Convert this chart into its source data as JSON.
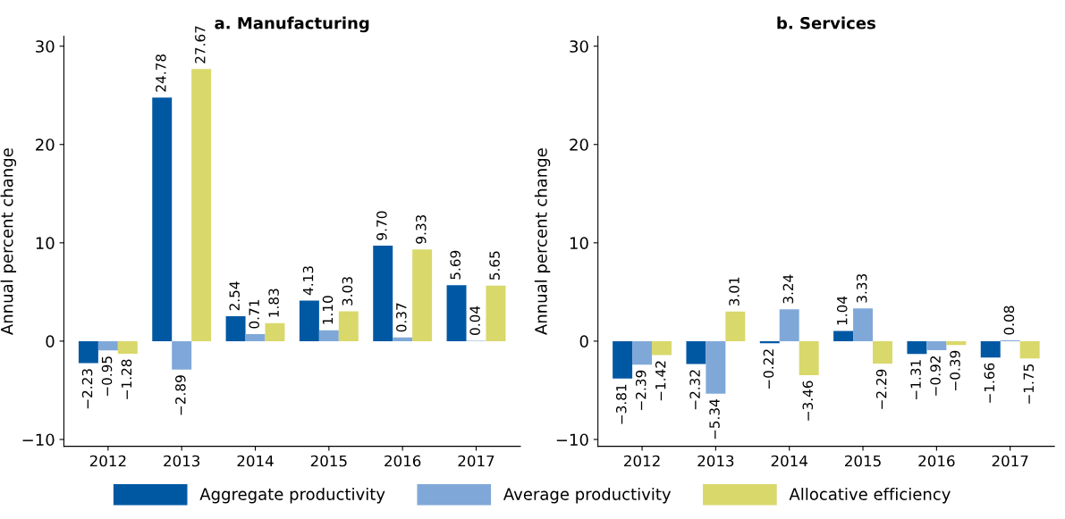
{
  "chart_data": [
    {
      "type": "bar",
      "title": "a. Manufacturing",
      "ylabel": "Annual percent change",
      "categories": [
        "2012",
        "2013",
        "2014",
        "2015",
        "2016",
        "2017"
      ],
      "series": [
        {
          "name": "Aggregate productivity",
          "color": "#0058a3",
          "values": [
            -2.23,
            24.78,
            2.54,
            4.13,
            9.7,
            5.69
          ],
          "value_labels": [
            "−2.23",
            "24.78",
            "2.54",
            "4.13",
            "9.70",
            "5.69"
          ]
        },
        {
          "name": "Average productivity",
          "color": "#7fa8d8",
          "values": [
            -0.95,
            -2.89,
            0.71,
            1.1,
            0.37,
            0.04
          ],
          "value_labels": [
            "−0.95",
            "−2.89",
            "0.71",
            "1.10",
            "0.37",
            "0.04"
          ]
        },
        {
          "name": "Allocative efficiency",
          "color": "#d9d86a",
          "values": [
            -1.28,
            27.67,
            1.83,
            3.03,
            9.33,
            5.65
          ],
          "value_labels": [
            "−1.28",
            "27.67",
            "1.83",
            "3.03",
            "9.33",
            "5.65"
          ]
        }
      ],
      "ylim": [
        -10.7,
        31
      ],
      "yticks": [
        -10,
        0,
        10,
        20,
        30
      ],
      "grid": false,
      "legend": "bottom"
    },
    {
      "type": "bar",
      "title": "b. Services",
      "ylabel": "Annual percent change",
      "categories": [
        "2012",
        "2013",
        "2014",
        "2015",
        "2016",
        "2017"
      ],
      "series": [
        {
          "name": "Aggregate productivity",
          "color": "#0058a3",
          "values": [
            -3.81,
            -2.32,
            -0.22,
            1.04,
            -1.31,
            -1.66
          ],
          "value_labels": [
            "−3.81",
            "−2.32",
            "−0.22",
            "1.04",
            "−1.31",
            "−1.66"
          ]
        },
        {
          "name": "Average productivity",
          "color": "#7fa8d8",
          "values": [
            -2.39,
            -5.34,
            3.24,
            3.33,
            -0.92,
            0.08
          ],
          "value_labels": [
            "−2.39",
            "−5.34",
            "3.24",
            "3.33",
            "−0.92",
            "0.08"
          ]
        },
        {
          "name": "Allocative efficiency",
          "color": "#d9d86a",
          "values": [
            -1.42,
            3.01,
            -3.46,
            -2.29,
            -0.39,
            -1.75
          ],
          "value_labels": [
            "−1.42",
            "3.01",
            "−3.46",
            "−2.29",
            "−0.39",
            "−1.75"
          ]
        }
      ],
      "ylim": [
        -10.7,
        31
      ],
      "yticks": [
        -10,
        0,
        10,
        20,
        30
      ],
      "grid": false,
      "legend": "bottom"
    }
  ]
}
